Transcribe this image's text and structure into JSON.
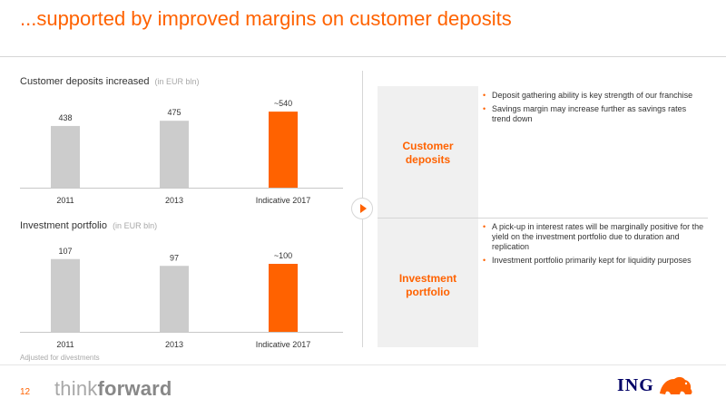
{
  "header": {
    "title": "...supported by improved margins on customer deposits"
  },
  "chart_data": [
    {
      "type": "bar",
      "title": "Customer deposits increased",
      "unit": "(in EUR bln)",
      "categories": [
        "2011",
        "2013",
        "Indicative 2017"
      ],
      "values": [
        438,
        475,
        540
      ],
      "value_labels": [
        "438",
        "475",
        "~540"
      ],
      "colors": [
        "#cccccc",
        "#cccccc",
        "#ff6200"
      ],
      "ylim": [
        0,
        560
      ]
    },
    {
      "type": "bar",
      "title": "Investment portfolio",
      "unit": "(in EUR bln)",
      "categories": [
        "2011",
        "2013",
        "Indicative 2017"
      ],
      "values": [
        107,
        97,
        100
      ],
      "value_labels": [
        "107",
        "97",
        "~100"
      ],
      "colors": [
        "#cccccc",
        "#cccccc",
        "#ff6200"
      ],
      "ylim": [
        0,
        112
      ]
    }
  ],
  "panels": {
    "deposits": {
      "label_line1": "Customer",
      "label_line2": "deposits",
      "bullets": [
        "Deposit gathering ability is key strength of our franchise",
        "Savings margin may increase further as savings rates trend down"
      ]
    },
    "investment": {
      "label_line1": "Investment",
      "label_line2": "portfolio",
      "bullets": [
        "A pick-up in interest rates will be marginally positive for the yield on the investment portfolio due to duration and replication",
        "Investment portfolio primarily kept for liquidity purposes"
      ]
    }
  },
  "footnote": "Adjusted for divestments",
  "footer": {
    "page_number": "12",
    "brand_think": "think",
    "brand_forward": "forward",
    "logo_text": "ING"
  },
  "colors": {
    "accent": "#ff6200",
    "bar_grey": "#cccccc",
    "logo_blue": "#000066"
  }
}
